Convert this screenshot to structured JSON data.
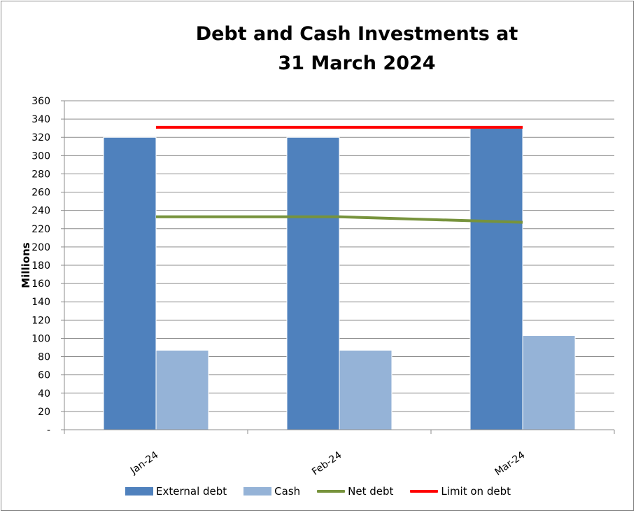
{
  "chart_data": {
    "type": "bar",
    "title": [
      "Debt and Cash Investments at",
      "31 March 2024"
    ],
    "ylabel": "Millions",
    "xlabel": "",
    "categories": [
      "Jan-24",
      "Feb-24",
      "Mar-24"
    ],
    "ylim": [
      0,
      360
    ],
    "ytick_labels": [
      "-",
      "20",
      "40",
      "60",
      "80",
      "100",
      "120",
      "140",
      "160",
      "180",
      "200",
      "220",
      "240",
      "260",
      "280",
      "300",
      "320",
      "340",
      "360"
    ],
    "grid": true,
    "legend_position": "bottom",
    "bar_series": [
      {
        "name": "External debt",
        "values": [
          320,
          320,
          330
        ],
        "color": "#4f81bd"
      },
      {
        "name": "Cash",
        "values": [
          87,
          87,
          103
        ],
        "color": "#95b3d7"
      }
    ],
    "line_series": [
      {
        "name": "Net debt",
        "values": [
          233,
          233,
          227
        ],
        "color": "#77933c"
      },
      {
        "name": "Limit on debt",
        "values": [
          331,
          331,
          331
        ],
        "color": "#ff0000"
      }
    ]
  }
}
